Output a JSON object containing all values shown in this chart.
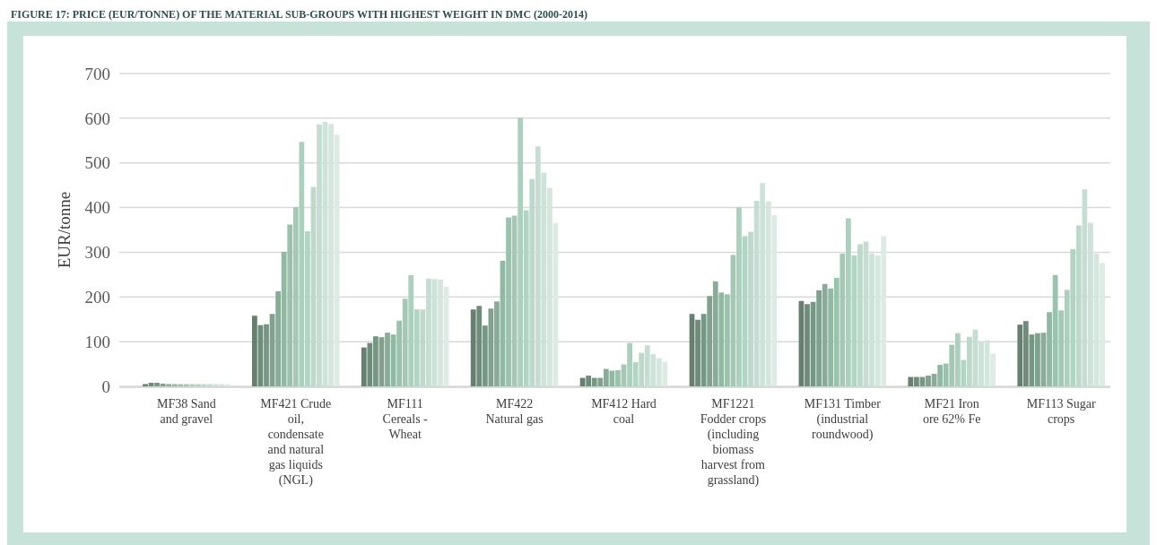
{
  "chart_data": {
    "type": "bar",
    "title": "FIGURE 17: PRICE (EUR/TONNE) OF THE MATERIAL SUB-GROUPS WITH HIGHEST WEIGHT IN DMC (2000-2014)",
    "ylabel": "EUR/tonne",
    "categories": [
      "MF38 Sand and gravel",
      "MF421 Crude oil, condensate and natural gas liquids (NGL)",
      "MF111 Cereals - Wheat",
      "MF422 Natural gas",
      "MF412 Hard coal",
      "MF1221 Fodder crops (including biomass harvest from grassland)",
      "MF131 Timber (industrial roundwood)",
      "MF21 Iron ore 62% Fe",
      "MF113 Sugar crops"
    ],
    "series": [
      {
        "color": "#66806f",
        "values": [
          5,
          158,
          87,
          172,
          19,
          162,
          191,
          21,
          138
        ]
      },
      {
        "color": "#6f8b7a",
        "values": [
          8,
          137,
          97,
          180,
          24,
          149,
          184,
          21,
          146
        ]
      },
      {
        "color": "#789684",
        "values": [
          8,
          139,
          112,
          136,
          19,
          162,
          189,
          21,
          116
        ]
      },
      {
        "color": "#80a18e",
        "values": [
          6,
          162,
          110,
          174,
          19,
          202,
          215,
          24,
          119
        ]
      },
      {
        "color": "#89ac98",
        "values": [
          5,
          213,
          120,
          190,
          39,
          235,
          229,
          28,
          120
        ]
      },
      {
        "color": "#92b7a3",
        "values": [
          5,
          301,
          116,
          281,
          35,
          210,
          219,
          48,
          166
        ]
      },
      {
        "color": "#9bc2ad",
        "values": [
          5,
          362,
          147,
          378,
          36,
          206,
          243,
          51,
          249
        ]
      },
      {
        "color": "#a3c9b5",
        "values": [
          5,
          401,
          196,
          382,
          49,
          294,
          297,
          93,
          170
        ]
      },
      {
        "color": "#abd0be",
        "values": [
          5,
          547,
          249,
          601,
          97,
          401,
          376,
          119,
          216
        ]
      },
      {
        "color": "#b3d4c4",
        "values": [
          5,
          347,
          172,
          394,
          54,
          336,
          293,
          59,
          307
        ]
      },
      {
        "color": "#bcd9cb",
        "values": [
          5,
          446,
          172,
          464,
          75,
          346,
          318,
          111,
          360
        ]
      },
      {
        "color": "#c5ddd2",
        "values": [
          5,
          586,
          241,
          537,
          92,
          415,
          324,
          127,
          441
        ]
      },
      {
        "color": "#cde2d8",
        "values": [
          5,
          592,
          240,
          478,
          72,
          455,
          297,
          99,
          366
        ]
      },
      {
        "color": "#d5e6de",
        "values": [
          5,
          587,
          239,
          444,
          63,
          414,
          293,
          103,
          297
        ]
      },
      {
        "color": "#dcebe3",
        "values": [
          5,
          563,
          223,
          366,
          55,
          383,
          336,
          73,
          276
        ]
      }
    ],
    "ylim": [
      0,
      700
    ],
    "yticks": [
      0,
      100,
      200,
      300,
      400,
      500,
      600,
      700
    ],
    "grid": "y"
  }
}
